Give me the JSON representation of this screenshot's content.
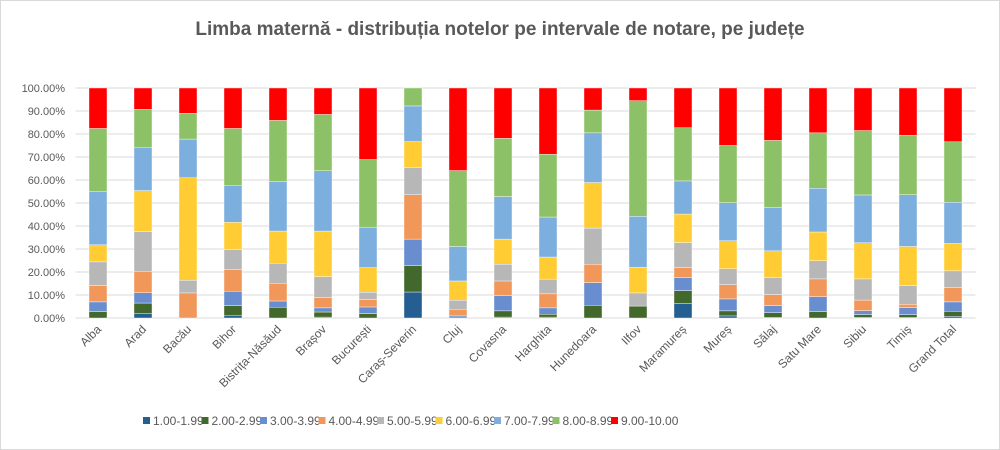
{
  "chart_data": {
    "type": "bar",
    "stacked": "percent",
    "title": "Limba maternă - distribuția notelor pe intervale de notare, pe județe",
    "xlabel": "",
    "ylabel": "",
    "ylim": [
      0,
      100
    ],
    "y_ticks": [
      "0.00%",
      "10.00%",
      "20.00%",
      "30.00%",
      "40.00%",
      "50.00%",
      "60.00%",
      "70.00%",
      "80.00%",
      "90.00%",
      "100.00%"
    ],
    "grid": true,
    "legend_position": "bottom",
    "categories": [
      "Alba",
      "Arad",
      "Bacău",
      "Bihor",
      "Bistrița-Năsăud",
      "Brașov",
      "București",
      "Caraș-Severin",
      "Cluj",
      "Covasna",
      "Harghita",
      "Hunedoara",
      "Ilfov",
      "Maramureș",
      "Mureș",
      "Sălaj",
      "Satu Mare",
      "Sibiu",
      "Timiș",
      "Grand Total"
    ],
    "series": [
      {
        "name": "1.00-1.99",
        "color": "#255e91",
        "values": [
          0,
          1.9,
          0,
          1.2,
          0,
          0.4,
          0,
          11.3,
          0,
          0.4,
          0.4,
          0,
          0,
          6.3,
          0.9,
          0.3,
          0,
          0.3,
          0.2,
          0.7
        ]
      },
      {
        "name": "2.00-2.99",
        "color": "#43682b",
        "values": [
          2.8,
          4.6,
          0,
          4.2,
          4.7,
          2.2,
          1.9,
          11.5,
          0,
          2.7,
          1.2,
          5.5,
          5.2,
          5.6,
          2.2,
          2.0,
          2.8,
          1.2,
          1.3,
          2.2
        ]
      },
      {
        "name": "3.00-3.99",
        "color": "#698ed0",
        "values": [
          4.2,
          4.5,
          0,
          6.2,
          2.7,
          1.8,
          2.9,
          11.5,
          0.9,
          6.6,
          2.8,
          9.9,
          0,
          5.7,
          5.2,
          3.1,
          6.5,
          1.7,
          3.0,
          4.1
        ]
      },
      {
        "name": "4.00-4.99",
        "color": "#f1975a",
        "values": [
          7.1,
          9.3,
          10.9,
          9.5,
          7.7,
          4.5,
          3.2,
          19.3,
          2.9,
          6.4,
          6.1,
          8.0,
          0,
          4.3,
          6.2,
          4.8,
          7.7,
          4.6,
          1.5,
          6.2
        ]
      },
      {
        "name": "5.00-5.99",
        "color": "#b7b7b7",
        "values": [
          10.3,
          17.3,
          5.5,
          8.7,
          8.7,
          9.1,
          3.2,
          11.7,
          3.9,
          7.3,
          6.4,
          15.7,
          5.7,
          10.9,
          6.9,
          7.4,
          7.9,
          9.2,
          8.1,
          7.3
        ]
      },
      {
        "name": "6.00-6.99",
        "color": "#ffcd33",
        "values": [
          7.4,
          17.8,
          44.6,
          11.8,
          14.0,
          19.8,
          10.7,
          11.4,
          8.4,
          10.9,
          9.6,
          19.8,
          11.2,
          12.4,
          12.2,
          11.6,
          12.5,
          15.7,
          17.0,
          11.9
        ]
      },
      {
        "name": "7.00-7.99",
        "color": "#7cafdd",
        "values": [
          23.1,
          18.6,
          16.8,
          16.1,
          21.6,
          26.2,
          17.6,
          15.5,
          15.0,
          18.5,
          17.4,
          21.6,
          22.1,
          14.4,
          16.5,
          18.9,
          19.0,
          20.8,
          22.5,
          17.9
        ]
      },
      {
        "name": "8.00-8.99",
        "color": "#8cc168",
        "values": [
          27.5,
          16.7,
          11.2,
          24.7,
          26.5,
          24.5,
          29.4,
          7.8,
          33.0,
          25.3,
          27.3,
          9.9,
          50.3,
          23.1,
          24.9,
          29.1,
          24.1,
          28.0,
          25.8,
          26.3
        ]
      },
      {
        "name": "9.00-10.00",
        "color": "#ff0000",
        "values": [
          17.6,
          9.3,
          11.0,
          17.6,
          14.1,
          11.5,
          31.1,
          0,
          35.9,
          21.9,
          28.8,
          9.6,
          5.5,
          17.3,
          25.0,
          22.8,
          19.5,
          18.5,
          20.6,
          23.4
        ]
      }
    ]
  }
}
